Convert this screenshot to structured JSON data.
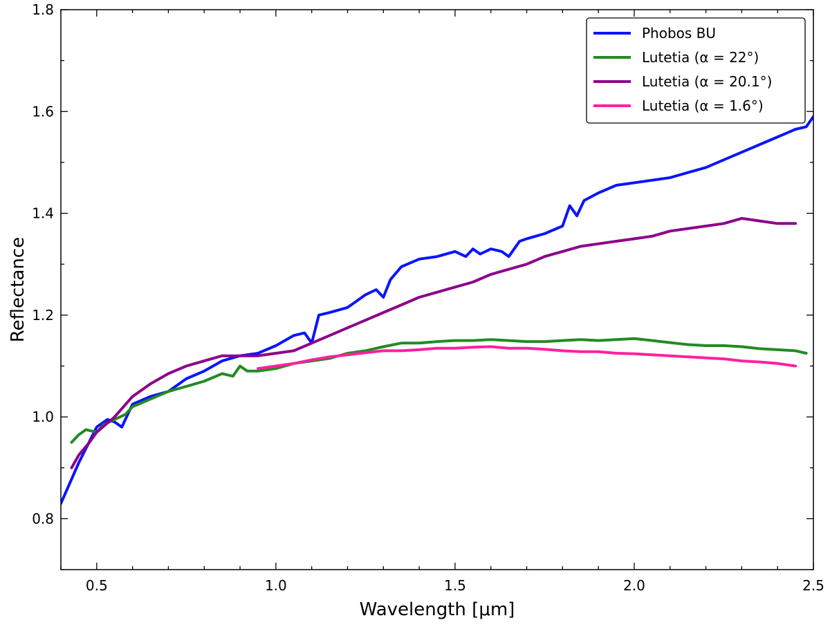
{
  "chart_data": {
    "type": "line",
    "title": "",
    "xlabel": "Wavelength [μm]",
    "ylabel": "Reflectance",
    "xlim": [
      0.4,
      2.5
    ],
    "ylim": [
      0.7,
      1.8
    ],
    "xticks": [
      0.5,
      1.0,
      1.5,
      2.0,
      2.5
    ],
    "xtick_labels": [
      "0.5",
      "1.0",
      "1.5",
      "2.0",
      "2.5"
    ],
    "yticks": [
      0.8,
      1.0,
      1.2,
      1.4,
      1.6,
      1.8
    ],
    "ytick_labels": [
      "0.8",
      "1.0",
      "1.2",
      "1.4",
      "1.6",
      "1.8"
    ],
    "grid": false,
    "legend_position": "top-right",
    "series": [
      {
        "name": "Phobos BU",
        "color": "#0a14ff",
        "x": [
          0.4,
          0.45,
          0.5,
          0.53,
          0.55,
          0.57,
          0.6,
          0.65,
          0.7,
          0.75,
          0.8,
          0.85,
          0.9,
          0.95,
          1.0,
          1.05,
          1.08,
          1.1,
          1.12,
          1.15,
          1.2,
          1.25,
          1.28,
          1.3,
          1.32,
          1.35,
          1.4,
          1.45,
          1.5,
          1.53,
          1.55,
          1.57,
          1.6,
          1.63,
          1.65,
          1.68,
          1.7,
          1.75,
          1.8,
          1.82,
          1.84,
          1.86,
          1.9,
          1.95,
          2.0,
          2.05,
          2.1,
          2.15,
          2.2,
          2.25,
          2.3,
          2.35,
          2.4,
          2.45,
          2.48,
          2.5
        ],
        "y": [
          0.83,
          0.91,
          0.98,
          0.995,
          0.99,
          0.98,
          1.025,
          1.04,
          1.05,
          1.075,
          1.09,
          1.11,
          1.12,
          1.125,
          1.14,
          1.16,
          1.165,
          1.145,
          1.2,
          1.205,
          1.215,
          1.24,
          1.25,
          1.235,
          1.27,
          1.295,
          1.31,
          1.315,
          1.325,
          1.315,
          1.33,
          1.32,
          1.33,
          1.325,
          1.315,
          1.345,
          1.35,
          1.36,
          1.375,
          1.415,
          1.395,
          1.425,
          1.44,
          1.455,
          1.46,
          1.465,
          1.47,
          1.48,
          1.49,
          1.505,
          1.52,
          1.535,
          1.55,
          1.565,
          1.57,
          1.59
        ]
      },
      {
        "name": "Lutetia (α = 22°)",
        "color": "#228b22",
        "x": [
          0.43,
          0.45,
          0.47,
          0.5,
          0.52,
          0.55,
          0.58,
          0.6,
          0.65,
          0.7,
          0.75,
          0.8,
          0.85,
          0.88,
          0.9,
          0.92,
          0.95,
          1.0,
          1.05,
          1.1,
          1.15,
          1.2,
          1.25,
          1.3,
          1.35,
          1.4,
          1.45,
          1.5,
          1.55,
          1.6,
          1.65,
          1.7,
          1.75,
          1.8,
          1.85,
          1.9,
          1.95,
          2.0,
          2.05,
          2.1,
          2.15,
          2.2,
          2.25,
          2.3,
          2.35,
          2.4,
          2.45,
          2.48
        ],
        "y": [
          0.95,
          0.965,
          0.975,
          0.97,
          0.985,
          0.995,
          1.005,
          1.02,
          1.035,
          1.05,
          1.06,
          1.07,
          1.085,
          1.08,
          1.1,
          1.09,
          1.09,
          1.095,
          1.105,
          1.11,
          1.115,
          1.125,
          1.13,
          1.138,
          1.145,
          1.145,
          1.148,
          1.15,
          1.15,
          1.152,
          1.15,
          1.148,
          1.148,
          1.15,
          1.152,
          1.15,
          1.152,
          1.154,
          1.15,
          1.146,
          1.142,
          1.14,
          1.14,
          1.138,
          1.134,
          1.132,
          1.13,
          1.125
        ]
      },
      {
        "name": "Lutetia (α = 20.1°)",
        "color": "#8b008b",
        "x": [
          0.43,
          0.45,
          0.48,
          0.5,
          0.55,
          0.6,
          0.65,
          0.7,
          0.75,
          0.8,
          0.85,
          0.9,
          0.95,
          1.0,
          1.05,
          1.1,
          1.15,
          1.2,
          1.25,
          1.3,
          1.35,
          1.4,
          1.45,
          1.5,
          1.55,
          1.6,
          1.65,
          1.7,
          1.75,
          1.8,
          1.85,
          1.9,
          1.95,
          2.0,
          2.05,
          2.1,
          2.15,
          2.2,
          2.25,
          2.3,
          2.35,
          2.4,
          2.45
        ],
        "y": [
          0.9,
          0.925,
          0.95,
          0.97,
          1.0,
          1.04,
          1.065,
          1.085,
          1.1,
          1.11,
          1.12,
          1.12,
          1.12,
          1.125,
          1.13,
          1.145,
          1.16,
          1.175,
          1.19,
          1.205,
          1.22,
          1.235,
          1.245,
          1.255,
          1.265,
          1.28,
          1.29,
          1.3,
          1.315,
          1.325,
          1.335,
          1.34,
          1.345,
          1.35,
          1.355,
          1.365,
          1.37,
          1.375,
          1.38,
          1.39,
          1.385,
          1.38,
          1.38
        ]
      },
      {
        "name": "Lutetia (α = 1.6°)",
        "color": "#ff1fa0",
        "x": [
          0.95,
          1.0,
          1.05,
          1.1,
          1.15,
          1.2,
          1.25,
          1.3,
          1.35,
          1.4,
          1.45,
          1.5,
          1.55,
          1.6,
          1.65,
          1.7,
          1.75,
          1.8,
          1.85,
          1.9,
          1.95,
          2.0,
          2.05,
          2.1,
          2.15,
          2.2,
          2.25,
          2.3,
          2.35,
          2.4,
          2.45
        ],
        "y": [
          1.095,
          1.1,
          1.105,
          1.112,
          1.118,
          1.122,
          1.126,
          1.13,
          1.13,
          1.132,
          1.135,
          1.135,
          1.137,
          1.138,
          1.135,
          1.135,
          1.133,
          1.13,
          1.128,
          1.128,
          1.125,
          1.124,
          1.122,
          1.12,
          1.118,
          1.116,
          1.114,
          1.11,
          1.108,
          1.105,
          1.1
        ]
      }
    ]
  }
}
